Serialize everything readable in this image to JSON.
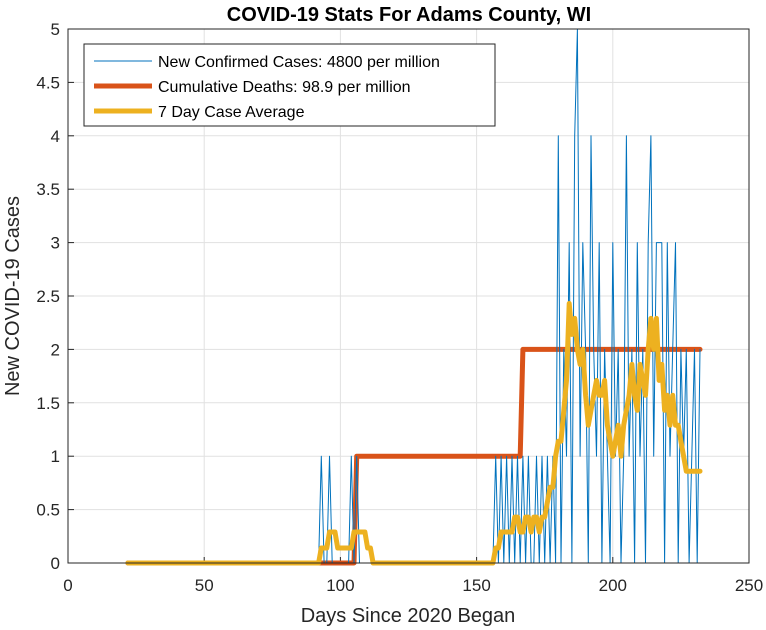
{
  "chart_data": {
    "type": "line",
    "title": "COVID-19 Stats For Adams County, WI",
    "xlabel": "Days Since 2020 Began",
    "ylabel": "New COVID-19 Cases",
    "xlim": [
      0,
      250
    ],
    "ylim": [
      0,
      5
    ],
    "xticks": [
      "0",
      "50",
      "100",
      "150",
      "200",
      "250"
    ],
    "yticks": [
      "0",
      "0.5",
      "1",
      "1.5",
      "2",
      "2.5",
      "3",
      "3.5",
      "4",
      "4.5",
      "5"
    ],
    "grid": true,
    "legend_position": "top-left",
    "series": [
      {
        "name": "New Confirmed Cases: 4800 per million",
        "color": "#0072BD",
        "x": [
          22,
          91,
          92,
          93,
          94,
          95,
          96,
          97,
          98,
          99,
          100,
          101,
          102,
          103,
          104,
          105,
          106,
          107,
          108,
          109,
          110,
          111,
          112,
          113,
          114,
          115,
          116,
          117,
          118,
          119,
          120,
          121,
          122,
          123,
          124,
          125,
          126,
          127,
          128,
          129,
          130,
          131,
          132,
          133,
          134,
          135,
          136,
          137,
          138,
          139,
          140,
          141,
          142,
          143,
          144,
          145,
          146,
          147,
          148,
          149,
          150,
          151,
          152,
          153,
          154,
          155,
          156,
          157,
          158,
          159,
          160,
          161,
          162,
          163,
          164,
          165,
          166,
          167,
          168,
          169,
          170,
          171,
          172,
          173,
          174,
          175,
          176,
          177,
          178,
          179,
          180,
          181,
          182,
          183,
          184,
          185,
          186,
          187,
          188,
          189,
          190,
          191,
          192,
          193,
          194,
          195,
          196,
          197,
          198,
          199,
          200,
          201,
          202,
          203,
          204,
          205,
          206,
          207,
          208,
          209,
          210,
          211,
          212,
          213,
          214,
          215,
          216,
          217,
          218,
          219,
          220,
          221,
          222,
          223,
          224,
          225,
          226,
          227,
          228,
          229,
          230,
          231,
          232
        ],
        "y": [
          0,
          0,
          0,
          1,
          0,
          0,
          1,
          0,
          0,
          0,
          0,
          0,
          0,
          0,
          1,
          0,
          1,
          0,
          0,
          0,
          0,
          0,
          0,
          0,
          0,
          0,
          0,
          0,
          0,
          0,
          0,
          0,
          0,
          0,
          0,
          0,
          0,
          0,
          0,
          0,
          0,
          0,
          0,
          0,
          0,
          0,
          0,
          0,
          0,
          0,
          0,
          0,
          0,
          0,
          0,
          0,
          0,
          0,
          0,
          0,
          0,
          0,
          0,
          0,
          0,
          0,
          0,
          1,
          0,
          1,
          0,
          1,
          0,
          1,
          0,
          1,
          0,
          1,
          0,
          1,
          0,
          0,
          1,
          0,
          1,
          0,
          1,
          0,
          1,
          0,
          4,
          0,
          2,
          1,
          3,
          0,
          4,
          5,
          1,
          3,
          2,
          0,
          4,
          2,
          1,
          3,
          0,
          2,
          1,
          0,
          3,
          1,
          2,
          0,
          1,
          4,
          1,
          2,
          0,
          3,
          1,
          2,
          0,
          3,
          4,
          1,
          3,
          3,
          3,
          0,
          3,
          1,
          2,
          3,
          0,
          2,
          1,
          2,
          0,
          1,
          2,
          0,
          2
        ]
      },
      {
        "name": "Cumulative Deaths: 98.9 per million",
        "color": "#D95319",
        "x": [
          22,
          105,
          106,
          166,
          167,
          232
        ],
        "y": [
          0,
          0,
          1,
          1,
          2,
          2
        ]
      },
      {
        "name": "7 Day Case Average",
        "color": "#EDB120",
        "x": [
          22,
          92,
          93,
          95,
          96,
          97,
          98,
          99,
          100,
          101,
          102,
          104,
          105,
          106,
          107,
          108,
          109,
          110,
          111,
          112,
          113,
          114,
          156,
          157,
          158,
          159,
          160,
          161,
          162,
          163,
          164,
          165,
          166,
          167,
          168,
          169,
          170,
          171,
          172,
          173,
          174,
          175,
          176,
          177,
          178,
          179,
          180,
          181,
          182,
          183,
          184,
          185,
          186,
          187,
          188,
          189,
          190,
          191,
          192,
          193,
          194,
          195,
          196,
          197,
          198,
          199,
          200,
          201,
          202,
          203,
          204,
          205,
          206,
          207,
          208,
          209,
          210,
          211,
          212,
          213,
          214,
          215,
          216,
          217,
          218,
          219,
          220,
          221,
          222,
          223,
          224,
          225,
          226,
          227,
          228,
          229,
          230,
          231,
          232
        ],
        "y": [
          0,
          0,
          0.14,
          0.14,
          0.29,
          0.29,
          0.29,
          0.14,
          0.14,
          0.14,
          0.14,
          0.14,
          0.29,
          0.29,
          0.29,
          0.29,
          0.29,
          0.14,
          0.14,
          0,
          0,
          0,
          0,
          0.14,
          0.14,
          0.29,
          0.29,
          0.29,
          0.29,
          0.29,
          0.43,
          0.43,
          0.29,
          0.29,
          0.43,
          0.43,
          0.29,
          0.43,
          0.43,
          0.29,
          0.43,
          0.43,
          0.57,
          0.71,
          0.71,
          1,
          1.14,
          1.14,
          1.43,
          1.71,
          2.43,
          2.14,
          2.29,
          2,
          1.86,
          2,
          1.57,
          1.29,
          1.43,
          1.57,
          1.71,
          1.57,
          1.57,
          1.71,
          1.29,
          1.14,
          1,
          1.14,
          1.29,
          1,
          1.29,
          1.43,
          1.57,
          1.86,
          1.57,
          1.43,
          1.86,
          1.71,
          1.57,
          2,
          2.29,
          2,
          2.29,
          1.71,
          1.86,
          1.43,
          1.57,
          1.29,
          1.57,
          1.29,
          1.29,
          1.14,
          1,
          0.86,
          0.86,
          0.86,
          0.86,
          0.86,
          0.86
        ]
      }
    ]
  }
}
